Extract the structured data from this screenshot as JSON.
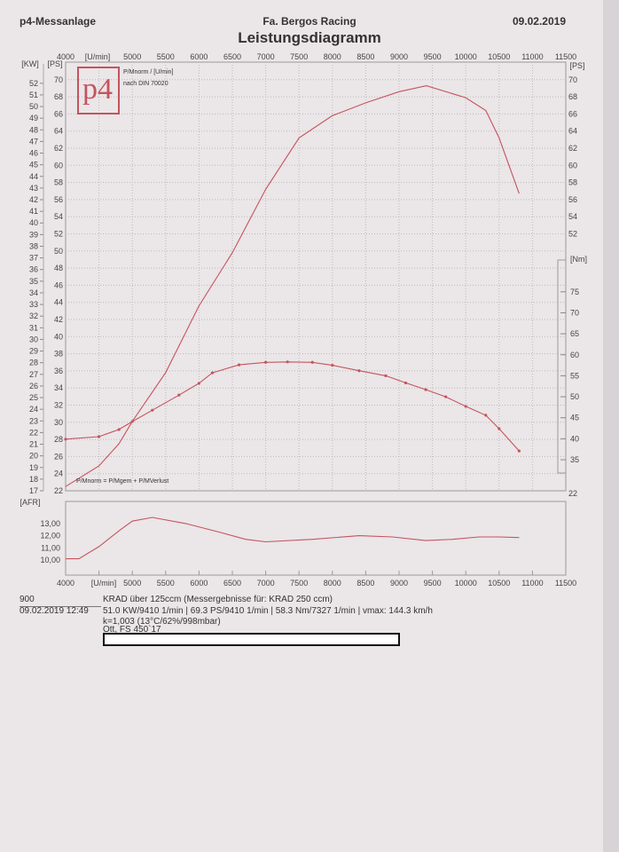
{
  "header": {
    "left": "p4-Messanlage",
    "company": "Fa. Bergos Racing",
    "date": "09.02.2019",
    "title": "Leistungsdiagramm"
  },
  "legend": {
    "line1": "P/Mnorm / [U/min]",
    "line2": "nach DIN 70020",
    "formula": "P/Mnorm = P/Mgem + P/MVerlust",
    "logo_text": "p4"
  },
  "info": {
    "id": "900",
    "datetime": "09.02.2019  12:49",
    "line1": "KRAD über 125ccm (Messergebnisse für: KRAD 250 ccm)",
    "line2": "51.0 KW/9410 1/min  |  69.3 PS/9410 1/min  |  58.3 Nm/7327 1/min | vmax: 144.3 km/h",
    "line3": "k=1,003 (13°C/62%/998mbar)",
    "line4": "Ott, FS 450`17"
  },
  "colors": {
    "curve": "#c4545e",
    "paper": "#ebe6e8"
  },
  "chart_data": [
    {
      "type": "line",
      "title": "Leistungsdiagramm",
      "xlabel": "[U/min]",
      "xlim": [
        4000,
        11500
      ],
      "x_ticks": [
        4000,
        5000,
        5500,
        6000,
        6500,
        7000,
        7500,
        8000,
        8500,
        9000,
        9500,
        10000,
        10500,
        11000,
        11500
      ],
      "y_left_kw": {
        "label": "[KW]",
        "range": [
          17,
          52
        ]
      },
      "y_left_ps": {
        "label": "[PS]",
        "range": [
          22,
          70
        ]
      },
      "y_right_ps": {
        "label": "[PS]",
        "ticks": [
          52,
          54,
          56,
          58,
          60,
          62,
          64,
          66,
          68,
          70
        ]
      },
      "y_right_nm": {
        "label": "[Nm]",
        "ticks": [
          35,
          40,
          45,
          50,
          55,
          60,
          65,
          70,
          75
        ],
        "range": [
          35,
          75
        ]
      },
      "bottom_right_label": "22",
      "series": [
        {
          "name": "Leistung [PS]",
          "axis": "ps",
          "x": [
            4000,
            4500,
            4800,
            5000,
            5500,
            6000,
            6500,
            7000,
            7500,
            8000,
            8500,
            9000,
            9410,
            10000,
            10300,
            10500,
            10800
          ],
          "y": [
            22.5,
            24.9,
            27.5,
            30.1,
            35.8,
            43.6,
            49.8,
            57.2,
            63.2,
            65.8,
            67.3,
            68.6,
            69.3,
            67.9,
            66.4,
            63.2,
            56.7
          ]
        },
        {
          "name": "Drehmoment [Nm]",
          "axis": "nm",
          "markers": true,
          "x": [
            4000,
            4500,
            4800,
            5000,
            5300,
            5700,
            6000,
            6200,
            6600,
            7000,
            7327,
            7700,
            8000,
            8400,
            8800,
            9100,
            9400,
            9700,
            10000,
            10300,
            10500,
            10800
          ],
          "y": [
            39.9,
            40.5,
            42.2,
            44.1,
            46.8,
            50.4,
            53.2,
            55.7,
            57.6,
            58.2,
            58.3,
            58.2,
            57.5,
            56.2,
            55.0,
            53.3,
            51.7,
            50.0,
            47.7,
            45.6,
            42.4,
            37.1
          ]
        }
      ]
    },
    {
      "type": "line",
      "ylabel": "[AFR]",
      "xlabel": "[U/min]",
      "xlim": [
        4000,
        11500
      ],
      "ylim": [
        9.5,
        14.5
      ],
      "y_ticks": [
        "10,00",
        "11,00",
        "12,00",
        "13,00"
      ],
      "x_ticks": [
        4000,
        5000,
        5500,
        6000,
        6500,
        7000,
        7500,
        8000,
        8500,
        9000,
        9500,
        10000,
        10500,
        11000,
        11500
      ],
      "series": [
        {
          "name": "AFR",
          "x": [
            4000,
            4200,
            4500,
            4800,
            5000,
            5300,
            5800,
            6300,
            6700,
            7000,
            7700,
            8400,
            8900,
            9400,
            9800,
            10200,
            10500,
            10800
          ],
          "y": [
            10.1,
            10.1,
            11.1,
            12.4,
            13.2,
            13.5,
            13.0,
            12.3,
            11.7,
            11.5,
            11.7,
            12.0,
            11.9,
            11.6,
            11.7,
            11.9,
            11.9,
            11.85
          ]
        }
      ]
    }
  ]
}
